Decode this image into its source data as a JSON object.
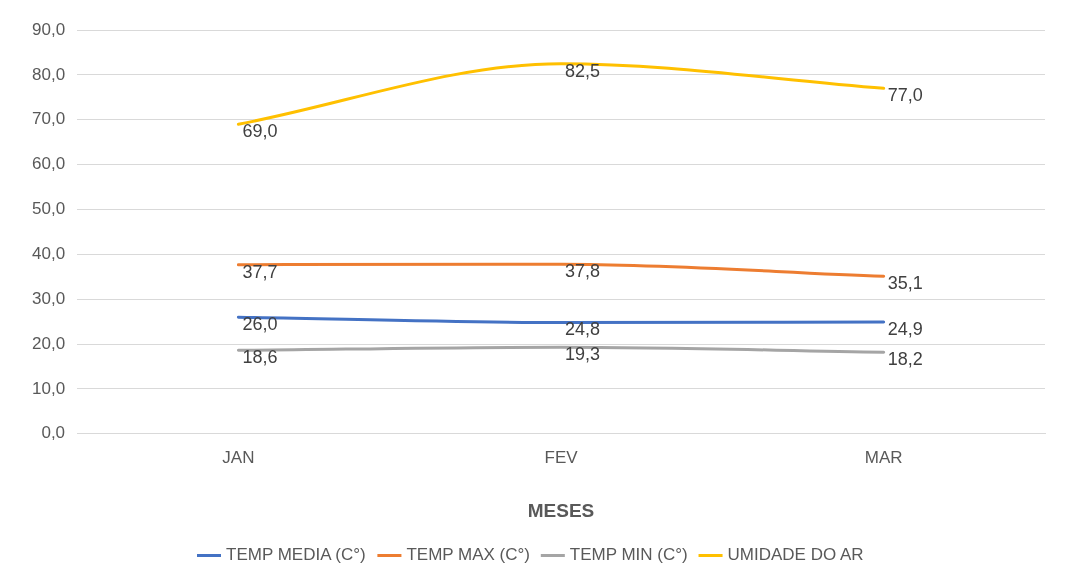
{
  "chart_data": {
    "type": "line",
    "xlabel": "MESES",
    "categories": [
      "JAN",
      "FEV",
      "MAR"
    ],
    "series": [
      {
        "name": "TEMP MEDIA (C°)",
        "color": "#4472c4",
        "values": [
          26.0,
          24.8,
          24.9
        ],
        "value_labels": [
          "26,0",
          "24,8",
          "24,9"
        ]
      },
      {
        "name": "TEMP MAX (C°)",
        "color": "#ed7d31",
        "values": [
          37.7,
          37.8,
          35.1
        ],
        "value_labels": [
          "37,7",
          "37,8",
          "35,1"
        ]
      },
      {
        "name": "TEMP MIN (C°)",
        "color": "#a5a5a5",
        "values": [
          18.6,
          19.3,
          18.2
        ],
        "value_labels": [
          "18,6",
          "19,3",
          "18,2"
        ]
      },
      {
        "name": "UMIDADE DO AR",
        "color": "#ffc000",
        "values": [
          69.0,
          82.5,
          77.0
        ],
        "value_labels": [
          "69,0",
          "82,5",
          "77,0"
        ]
      }
    ],
    "ylim": [
      0,
      90
    ],
    "yticks": [
      {
        "value": 0,
        "label": "0,0"
      },
      {
        "value": 10,
        "label": "10,0"
      },
      {
        "value": 20,
        "label": "20,0"
      },
      {
        "value": 30,
        "label": "30,0"
      },
      {
        "value": 40,
        "label": "40,0"
      },
      {
        "value": 50,
        "label": "50,0"
      },
      {
        "value": 60,
        "label": "60,0"
      },
      {
        "value": 70,
        "label": "70,0"
      },
      {
        "value": 80,
        "label": "80,0"
      },
      {
        "value": 90,
        "label": "90,0"
      }
    ],
    "grid": "y",
    "legend": "bottom",
    "marker": "none",
    "line_style": "solid"
  }
}
